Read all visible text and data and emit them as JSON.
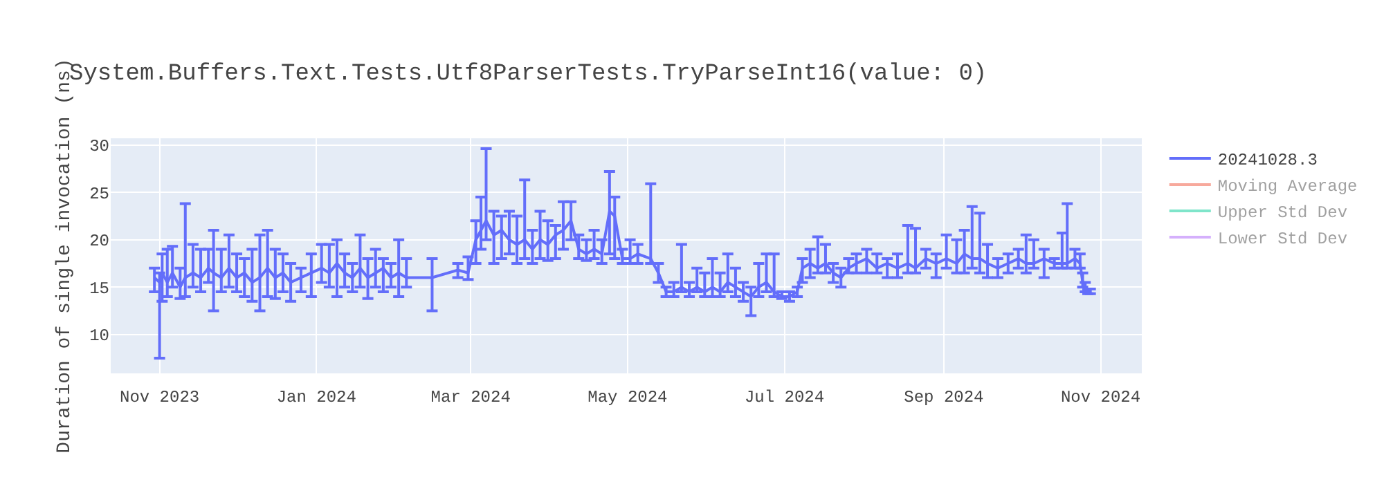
{
  "chart_data": {
    "type": "line",
    "title": "System.Buffers.Text.Tests.Utf8ParserTests.TryParseInt16(value: 0)",
    "ylabel": "Duration of single invocation (ns)",
    "x": [
      "2023-10-30",
      "2023-11-01",
      "2023-11-02",
      "2023-11-04",
      "2023-11-06",
      "2023-11-09",
      "2023-11-11",
      "2023-11-14",
      "2023-11-17",
      "2023-11-20",
      "2023-11-22",
      "2023-11-25",
      "2023-11-28",
      "2023-12-01",
      "2023-12-04",
      "2023-12-07",
      "2023-12-10",
      "2023-12-13",
      "2023-12-16",
      "2023-12-19",
      "2023-12-22",
      "2023-12-26",
      "2023-12-30",
      "2024-01-03",
      "2024-01-06",
      "2024-01-09",
      "2024-01-12",
      "2024-01-15",
      "2024-01-18",
      "2024-01-21",
      "2024-01-24",
      "2024-01-27",
      "2024-01-30",
      "2024-02-02",
      "2024-02-05",
      "2024-02-15",
      "2024-02-25",
      "2024-02-29",
      "2024-03-03",
      "2024-03-05",
      "2024-03-07",
      "2024-03-10",
      "2024-03-13",
      "2024-03-16",
      "2024-03-19",
      "2024-03-22",
      "2024-03-25",
      "2024-03-28",
      "2024-03-31",
      "2024-04-03",
      "2024-04-06",
      "2024-04-09",
      "2024-04-12",
      "2024-04-15",
      "2024-04-18",
      "2024-04-21",
      "2024-04-24",
      "2024-04-26",
      "2024-04-29",
      "2024-05-02",
      "2024-05-05",
      "2024-05-10",
      "2024-05-13",
      "2024-05-16",
      "2024-05-19",
      "2024-05-22",
      "2024-05-25",
      "2024-05-28",
      "2024-05-31",
      "2024-06-03",
      "2024-06-06",
      "2024-06-09",
      "2024-06-12",
      "2024-06-15",
      "2024-06-18",
      "2024-06-21",
      "2024-06-24",
      "2024-06-27",
      "2024-06-30",
      "2024-07-03",
      "2024-07-06",
      "2024-07-08",
      "2024-07-11",
      "2024-07-14",
      "2024-07-17",
      "2024-07-20",
      "2024-07-23",
      "2024-07-26",
      "2024-07-29",
      "2024-08-02",
      "2024-08-06",
      "2024-08-10",
      "2024-08-14",
      "2024-08-18",
      "2024-08-21",
      "2024-08-25",
      "2024-08-29",
      "2024-09-02",
      "2024-09-06",
      "2024-09-09",
      "2024-09-12",
      "2024-09-15",
      "2024-09-18",
      "2024-09-22",
      "2024-09-26",
      "2024-09-30",
      "2024-10-03",
      "2024-10-06",
      "2024-10-10",
      "2024-10-14",
      "2024-10-17",
      "2024-10-19",
      "2024-10-22",
      "2024-10-24",
      "2024-10-25",
      "2024-10-26",
      "2024-10-27",
      "2024-10-28"
    ],
    "series": [
      {
        "name": "20241028.3",
        "color": "#636efa",
        "values": [
          16.0,
          15.5,
          16.5,
          15.5,
          16.5,
          15.0,
          16.0,
          16.5,
          16.0,
          17.0,
          16.5,
          16.0,
          17.0,
          16.0,
          16.5,
          15.5,
          16.0,
          17.0,
          16.0,
          16.5,
          15.5,
          16.0,
          16.5,
          17.0,
          16.5,
          17.5,
          16.5,
          16.0,
          17.0,
          16.0,
          16.5,
          17.0,
          16.0,
          16.5,
          16.0,
          16.0,
          16.8,
          16.5,
          20.0,
          21.0,
          22.0,
          20.5,
          21.0,
          20.0,
          19.5,
          20.0,
          19.0,
          20.0,
          19.5,
          20.5,
          21.0,
          22.0,
          19.0,
          18.5,
          19.0,
          18.5,
          23.0,
          22.5,
          18.0,
          18.0,
          18.5,
          18.0,
          16.5,
          14.5,
          14.5,
          15.0,
          14.5,
          15.0,
          14.5,
          15.0,
          14.5,
          15.5,
          15.0,
          14.5,
          14.0,
          15.0,
          15.5,
          14.5,
          14.0,
          14.0,
          14.5,
          17.0,
          17.5,
          17.0,
          17.5,
          16.5,
          16.0,
          17.0,
          17.5,
          18.0,
          17.0,
          17.5,
          17.0,
          17.5,
          17.0,
          18.0,
          17.5,
          18.0,
          17.5,
          18.5,
          18.0,
          18.0,
          17.5,
          17.0,
          17.5,
          18.0,
          17.5,
          17.5,
          18.0,
          17.5,
          17.5,
          17.5,
          18.0,
          17.5,
          15.5,
          15.0,
          14.5,
          14.5
        ],
        "errors": [
          [
            14.5,
            17.0
          ],
          [
            7.5,
            16.5
          ],
          [
            13.5,
            18.5
          ],
          [
            14.0,
            19.0
          ],
          [
            15.0,
            19.3
          ],
          [
            13.8,
            17.0
          ],
          [
            14.0,
            23.8
          ],
          [
            15.0,
            19.5
          ],
          [
            14.5,
            19.0
          ],
          [
            15.5,
            19.0
          ],
          [
            12.5,
            21.0
          ],
          [
            14.5,
            19.0
          ],
          [
            15.0,
            20.5
          ],
          [
            14.5,
            18.5
          ],
          [
            14.0,
            18.0
          ],
          [
            13.5,
            19.0
          ],
          [
            12.5,
            20.5
          ],
          [
            14.0,
            21.0
          ],
          [
            13.8,
            19.0
          ],
          [
            14.5,
            18.5
          ],
          [
            13.5,
            17.5
          ],
          [
            14.5,
            17.0
          ],
          [
            14.0,
            18.5
          ],
          [
            15.5,
            19.5
          ],
          [
            15.0,
            19.5
          ],
          [
            14.0,
            20.0
          ],
          [
            15.0,
            18.5
          ],
          [
            14.5,
            17.5
          ],
          [
            15.0,
            20.5
          ],
          [
            13.8,
            18.0
          ],
          [
            15.0,
            19.0
          ],
          [
            14.5,
            18.0
          ],
          [
            15.0,
            17.5
          ],
          [
            14.0,
            20.0
          ],
          [
            15.0,
            18.0
          ],
          [
            12.5,
            18.0
          ],
          [
            16.0,
            17.5
          ],
          [
            15.8,
            18.2
          ],
          [
            17.5,
            22.0
          ],
          [
            19.0,
            24.5
          ],
          [
            20.0,
            29.6
          ],
          [
            17.5,
            23.0
          ],
          [
            18.0,
            22.5
          ],
          [
            18.5,
            23.0
          ],
          [
            17.5,
            22.5
          ],
          [
            18.0,
            26.3
          ],
          [
            17.5,
            21.0
          ],
          [
            18.0,
            23.0
          ],
          [
            17.8,
            22.0
          ],
          [
            18.0,
            21.5
          ],
          [
            19.0,
            24.0
          ],
          [
            20.0,
            24.0
          ],
          [
            18.0,
            20.5
          ],
          [
            17.8,
            20.0
          ],
          [
            18.0,
            21.0
          ],
          [
            17.5,
            20.0
          ],
          [
            18.5,
            27.2
          ],
          [
            18.0,
            24.5
          ],
          [
            17.5,
            19.0
          ],
          [
            17.5,
            20.0
          ],
          [
            17.5,
            19.5
          ],
          [
            17.5,
            25.9
          ],
          [
            15.5,
            17.5
          ],
          [
            14.0,
            15.0
          ],
          [
            14.0,
            15.5
          ],
          [
            14.5,
            19.5
          ],
          [
            14.0,
            15.5
          ],
          [
            14.5,
            17.0
          ],
          [
            14.0,
            16.5
          ],
          [
            14.0,
            18.0
          ],
          [
            14.0,
            16.5
          ],
          [
            14.5,
            18.5
          ],
          [
            14.0,
            17.0
          ],
          [
            13.5,
            15.5
          ],
          [
            12.0,
            15.0
          ],
          [
            14.0,
            17.5
          ],
          [
            14.5,
            18.5
          ],
          [
            14.0,
            18.5
          ],
          [
            13.8,
            14.5
          ],
          [
            13.5,
            14.5
          ],
          [
            14.0,
            15.0
          ],
          [
            15.5,
            18.0
          ],
          [
            16.0,
            19.0
          ],
          [
            16.5,
            20.3
          ],
          [
            16.5,
            19.5
          ],
          [
            15.5,
            17.5
          ],
          [
            15.0,
            17.0
          ],
          [
            16.5,
            18.0
          ],
          [
            16.5,
            18.5
          ],
          [
            16.5,
            19.0
          ],
          [
            16.5,
            18.5
          ],
          [
            16.0,
            18.0
          ],
          [
            16.0,
            18.5
          ],
          [
            16.5,
            21.5
          ],
          [
            16.5,
            21.2
          ],
          [
            17.0,
            19.0
          ],
          [
            16.0,
            18.5
          ],
          [
            17.0,
            20.5
          ],
          [
            16.5,
            20.0
          ],
          [
            16.5,
            21.0
          ],
          [
            17.0,
            23.5
          ],
          [
            16.5,
            22.8
          ],
          [
            16.0,
            19.5
          ],
          [
            16.0,
            18.0
          ],
          [
            16.5,
            18.5
          ],
          [
            17.0,
            19.0
          ],
          [
            16.5,
            20.5
          ],
          [
            17.0,
            20.0
          ],
          [
            16.0,
            19.0
          ],
          [
            17.0,
            18.0
          ],
          [
            17.0,
            20.7
          ],
          [
            17.0,
            23.8
          ],
          [
            17.0,
            19.0
          ],
          [
            17.0,
            18.5
          ],
          [
            15.0,
            16.5
          ],
          [
            14.5,
            15.5
          ],
          [
            14.3,
            14.8
          ],
          [
            14.3,
            14.8
          ]
        ]
      },
      {
        "name": "Moving Average",
        "color": "#ef553b",
        "values": [
          null,
          null,
          null,
          null,
          null,
          null,
          null,
          null,
          null,
          null,
          null,
          null,
          null,
          null,
          null,
          null,
          null,
          null,
          null,
          null,
          null,
          null,
          null,
          null,
          null,
          null,
          null,
          null,
          null,
          null,
          null,
          null,
          null,
          null,
          null,
          null,
          null,
          null,
          null,
          null,
          null,
          null,
          null,
          null,
          null,
          null,
          null,
          null,
          null,
          null,
          null,
          null,
          null,
          null,
          null,
          null,
          null,
          null,
          null,
          null,
          null,
          null,
          null,
          null,
          null,
          null,
          null,
          null,
          null,
          null,
          null,
          null,
          null,
          null,
          null,
          null,
          null,
          null,
          null,
          null,
          null,
          null,
          null,
          null,
          null,
          null,
          null,
          null,
          null,
          null,
          null,
          null,
          null,
          null,
          null,
          null,
          null,
          null,
          null,
          null,
          null,
          null,
          null,
          null,
          null,
          null,
          null,
          null,
          null,
          null,
          null,
          null,
          null,
          null,
          null,
          null,
          null,
          null
        ]
      },
      {
        "name": "Upper Std Dev",
        "color": "#00cc96",
        "values": [
          null,
          null,
          null,
          null,
          null,
          null,
          null,
          null,
          null,
          null,
          null,
          null,
          null,
          null,
          null,
          null,
          null,
          null,
          null,
          null,
          null,
          null,
          null,
          null,
          null,
          null,
          null,
          null,
          null,
          null,
          null,
          null,
          null,
          null,
          null,
          null,
          null,
          null,
          null,
          null,
          null,
          null,
          null,
          null,
          null,
          null,
          null,
          null,
          null,
          null,
          null,
          null,
          null,
          null,
          null,
          null,
          null,
          null,
          null,
          null,
          null,
          null,
          null,
          null,
          null,
          null,
          null,
          null,
          null,
          null,
          null,
          null,
          null,
          null,
          null,
          null,
          null,
          null,
          null,
          null,
          null,
          null,
          null,
          null,
          null,
          null,
          null,
          null,
          null,
          null,
          null,
          null,
          null,
          null,
          null,
          null,
          null,
          null,
          null,
          null,
          null,
          null,
          null,
          null,
          null,
          null,
          null,
          null,
          null,
          null,
          null,
          null,
          null,
          null,
          null,
          null,
          null,
          null
        ]
      },
      {
        "name": "Lower Std Dev",
        "color": "#ab63fa",
        "values": [
          null,
          null,
          null,
          null,
          null,
          null,
          null,
          null,
          null,
          null,
          null,
          null,
          null,
          null,
          null,
          null,
          null,
          null,
          null,
          null,
          null,
          null,
          null,
          null,
          null,
          null,
          null,
          null,
          null,
          null,
          null,
          null,
          null,
          null,
          null,
          null,
          null,
          null,
          null,
          null,
          null,
          null,
          null,
          null,
          null,
          null,
          null,
          null,
          null,
          null,
          null,
          null,
          null,
          null,
          null,
          null,
          null,
          null,
          null,
          null,
          null,
          null,
          null,
          null,
          null,
          null,
          null,
          null,
          null,
          null,
          null,
          null,
          null,
          null,
          null,
          null,
          null,
          null,
          null,
          null,
          null,
          null,
          null,
          null,
          null,
          null,
          null,
          null,
          null,
          null,
          null,
          null,
          null,
          null,
          null,
          null,
          null,
          null,
          null,
          null,
          null,
          null,
          null,
          null,
          null,
          null,
          null,
          null,
          null,
          null,
          null,
          null,
          null,
          null,
          null,
          null,
          null,
          null
        ]
      }
    ],
    "xlim": [
      "2023-10-13",
      "2024-11-17"
    ],
    "xticks": [
      {
        "value": "2023-11-01",
        "label": "Nov 2023"
      },
      {
        "value": "2024-01-01",
        "label": "Jan 2024"
      },
      {
        "value": "2024-03-01",
        "label": "Mar 2024"
      },
      {
        "value": "2024-05-01",
        "label": "May 2024"
      },
      {
        "value": "2024-07-01",
        "label": "Jul 2024"
      },
      {
        "value": "2024-09-01",
        "label": "Sep 2024"
      },
      {
        "value": "2024-11-01",
        "label": "Nov 2024"
      }
    ],
    "ylim": [
      5.9,
      30.7
    ],
    "yticks": [
      10,
      15,
      20,
      25,
      30
    ],
    "grid": true,
    "legend": "top right",
    "marker": "none",
    "line_style": "solid"
  }
}
